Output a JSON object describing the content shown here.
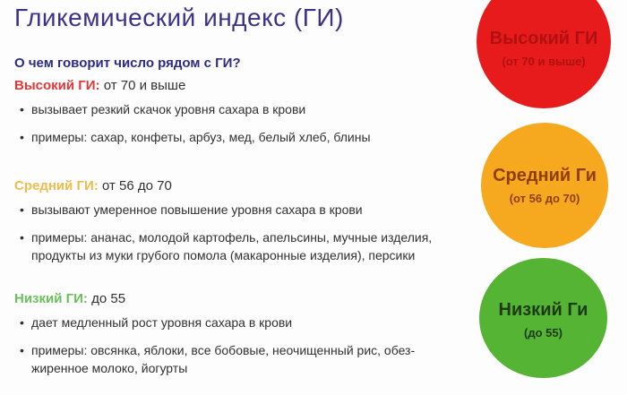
{
  "title": "Гликемический индекс (ГИ)",
  "question": "О чем говорит число рядом с ГИ?",
  "sections": [
    {
      "label": "Высокий ГИ:",
      "range": "от 70 и выше",
      "bullets": [
        {
          "lines": [
            "вызывает резкий скачок уровня сахара в крови"
          ]
        },
        {
          "lines": [
            "примеры: сахар, конфеты, арбуз, мед, белый хлеб, блины"
          ]
        }
      ]
    },
    {
      "label": "Средний ГИ:",
      "range": "от 56 до 70",
      "bullets": [
        {
          "lines": [
            "вызывают умеренное повышение уровня сахара в крови"
          ]
        },
        {
          "lines": [
            "примеры: ананас, молодой картофель, апельсины, мучные изделия,",
            "продукты из муки грубого помола (макаронные изделия), персики"
          ]
        }
      ]
    },
    {
      "label": "Низкий ГИ:",
      "range": "до 55",
      "bullets": [
        {
          "lines": [
            "дает медленный рост уровня сахара в крови"
          ]
        },
        {
          "lines": [
            "примеры: овсянка, яблоки, все бобовые, неочищенный рис, обез-",
            "жиренное молоко, йогурты"
          ]
        }
      ]
    }
  ],
  "circles": [
    {
      "label": "Высокий ГИ",
      "sub": "(от 70 и выше)"
    },
    {
      "label": "Средний Ги",
      "sub": "(от 56 до 70)"
    },
    {
      "label": "Низкий Ги",
      "sub": "(до 55)"
    }
  ],
  "colors": {
    "background": "#fdfdfd",
    "title": "#3d3189",
    "question": "#2b2a86",
    "body": "#303030",
    "high_label": "#e03836",
    "medium_label": "#eebc4e",
    "low_label": "#69c05a",
    "circle_high_bg": "#e71b1b",
    "circle_high_fg": "#b01010",
    "circle_medium_bg": "#f6a91e",
    "circle_medium_fg": "#8f3e0b",
    "circle_low_bg": "#55b434",
    "circle_low_fg": "#1d3a12"
  }
}
